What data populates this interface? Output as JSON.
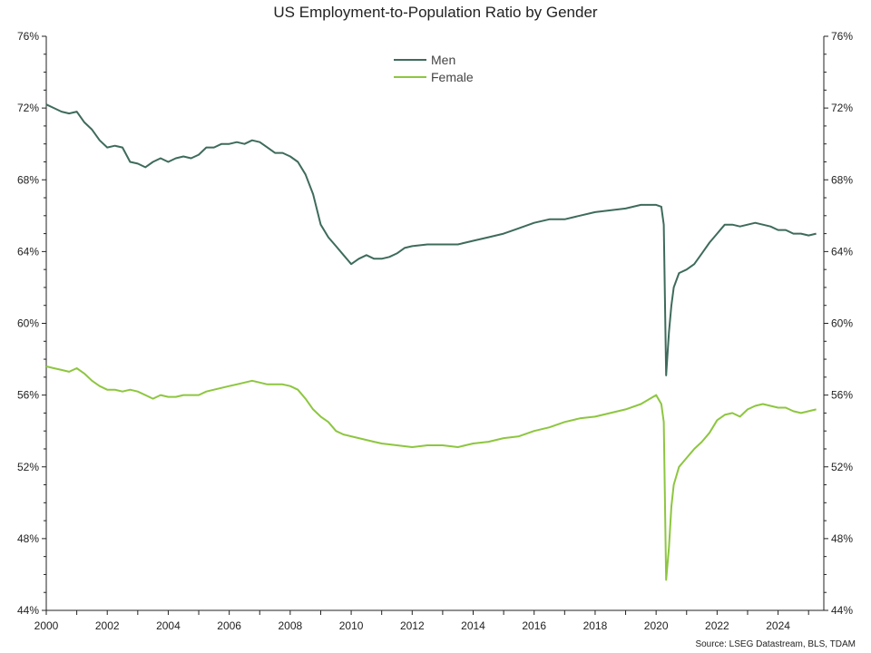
{
  "title": "US Employment-to-Population Ratio by Gender",
  "source": "Source: LSEG Datastream, BLS, TDAM",
  "chart_data": {
    "type": "line",
    "title": "US Employment-to-Population Ratio by Gender",
    "xlabel": "",
    "ylabel": "",
    "xlim": [
      2000,
      2025.5
    ],
    "ylim": [
      44,
      76
    ],
    "x_ticks": [
      "2000",
      "2002",
      "2004",
      "2006",
      "2008",
      "2010",
      "2012",
      "2014",
      "2016",
      "2018",
      "2020",
      "2022",
      "2024"
    ],
    "y_ticks": [
      "44%",
      "48%",
      "52%",
      "56%",
      "60%",
      "64%",
      "68%",
      "72%",
      "76%"
    ],
    "y_tick_values": [
      44,
      48,
      52,
      56,
      60,
      64,
      68,
      72,
      76
    ],
    "grid": false,
    "legend_position": "top-center",
    "series": [
      {
        "name": "Men",
        "color": "#3e6b5b",
        "x": [
          2000.0,
          2000.25,
          2000.5,
          2000.75,
          2001.0,
          2001.25,
          2001.5,
          2001.75,
          2002.0,
          2002.25,
          2002.5,
          2002.75,
          2003.0,
          2003.25,
          2003.5,
          2003.75,
          2004.0,
          2004.25,
          2004.5,
          2004.75,
          2005.0,
          2005.25,
          2005.5,
          2005.75,
          2006.0,
          2006.25,
          2006.5,
          2006.75,
          2007.0,
          2007.25,
          2007.5,
          2007.75,
          2008.0,
          2008.25,
          2008.5,
          2008.75,
          2009.0,
          2009.25,
          2009.5,
          2009.75,
          2010.0,
          2010.25,
          2010.5,
          2010.75,
          2011.0,
          2011.25,
          2011.5,
          2011.75,
          2012.0,
          2012.5,
          2013.0,
          2013.5,
          2014.0,
          2014.5,
          2015.0,
          2015.5,
          2016.0,
          2016.5,
          2017.0,
          2017.5,
          2018.0,
          2018.5,
          2019.0,
          2019.5,
          2020.0,
          2020.17,
          2020.25,
          2020.33,
          2020.42,
          2020.5,
          2020.58,
          2020.75,
          2021.0,
          2021.25,
          2021.5,
          2021.75,
          2022.0,
          2022.25,
          2022.5,
          2022.75,
          2023.0,
          2023.25,
          2023.5,
          2023.75,
          2024.0,
          2024.25,
          2024.5,
          2024.75,
          2025.0,
          2025.25
        ],
        "values": [
          72.2,
          72.0,
          71.8,
          71.7,
          71.8,
          71.2,
          70.8,
          70.2,
          69.8,
          69.9,
          69.8,
          69.0,
          68.9,
          68.7,
          69.0,
          69.2,
          69.0,
          69.2,
          69.3,
          69.2,
          69.4,
          69.8,
          69.8,
          70.0,
          70.0,
          70.1,
          70.0,
          70.2,
          70.1,
          69.8,
          69.5,
          69.5,
          69.3,
          69.0,
          68.3,
          67.2,
          65.5,
          64.8,
          64.3,
          63.8,
          63.3,
          63.6,
          63.8,
          63.6,
          63.6,
          63.7,
          63.9,
          64.2,
          64.3,
          64.4,
          64.4,
          64.4,
          64.6,
          64.8,
          65.0,
          65.3,
          65.6,
          65.8,
          65.8,
          66.0,
          66.2,
          66.3,
          66.4,
          66.6,
          66.6,
          66.5,
          65.5,
          57.1,
          59.5,
          61.0,
          62.0,
          62.8,
          63.0,
          63.3,
          63.9,
          64.5,
          65.0,
          65.5,
          65.5,
          65.4,
          65.5,
          65.6,
          65.5,
          65.4,
          65.2,
          65.2,
          65.0,
          65.0,
          64.9,
          65.0
        ]
      },
      {
        "name": "Female",
        "color": "#8dc63f",
        "x": [
          2000.0,
          2000.25,
          2000.5,
          2000.75,
          2001.0,
          2001.25,
          2001.5,
          2001.75,
          2002.0,
          2002.25,
          2002.5,
          2002.75,
          2003.0,
          2003.25,
          2003.5,
          2003.75,
          2004.0,
          2004.25,
          2004.5,
          2004.75,
          2005.0,
          2005.25,
          2005.5,
          2005.75,
          2006.0,
          2006.25,
          2006.5,
          2006.75,
          2007.0,
          2007.25,
          2007.5,
          2007.75,
          2008.0,
          2008.25,
          2008.5,
          2008.75,
          2009.0,
          2009.25,
          2009.5,
          2009.75,
          2010.0,
          2010.25,
          2010.5,
          2010.75,
          2011.0,
          2011.5,
          2012.0,
          2012.5,
          2013.0,
          2013.5,
          2014.0,
          2014.5,
          2015.0,
          2015.5,
          2016.0,
          2016.5,
          2017.0,
          2017.5,
          2018.0,
          2018.5,
          2019.0,
          2019.5,
          2020.0,
          2020.17,
          2020.25,
          2020.33,
          2020.42,
          2020.5,
          2020.58,
          2020.75,
          2021.0,
          2021.25,
          2021.5,
          2021.75,
          2022.0,
          2022.25,
          2022.5,
          2022.75,
          2023.0,
          2023.25,
          2023.5,
          2023.75,
          2024.0,
          2024.25,
          2024.5,
          2024.75,
          2025.0,
          2025.25
        ],
        "values": [
          57.6,
          57.5,
          57.4,
          57.3,
          57.5,
          57.2,
          56.8,
          56.5,
          56.3,
          56.3,
          56.2,
          56.3,
          56.2,
          56.0,
          55.8,
          56.0,
          55.9,
          55.9,
          56.0,
          56.0,
          56.0,
          56.2,
          56.3,
          56.4,
          56.5,
          56.6,
          56.7,
          56.8,
          56.7,
          56.6,
          56.6,
          56.6,
          56.5,
          56.3,
          55.8,
          55.2,
          54.8,
          54.5,
          54.0,
          53.8,
          53.7,
          53.6,
          53.5,
          53.4,
          53.3,
          53.2,
          53.1,
          53.2,
          53.2,
          53.1,
          53.3,
          53.4,
          53.6,
          53.7,
          54.0,
          54.2,
          54.5,
          54.7,
          54.8,
          55.0,
          55.2,
          55.5,
          56.0,
          55.5,
          54.5,
          45.7,
          47.5,
          49.8,
          51.0,
          52.0,
          52.5,
          53.0,
          53.4,
          53.9,
          54.6,
          54.9,
          55.0,
          54.8,
          55.2,
          55.4,
          55.5,
          55.4,
          55.3,
          55.3,
          55.1,
          55.0,
          55.1,
          55.2
        ]
      }
    ]
  }
}
